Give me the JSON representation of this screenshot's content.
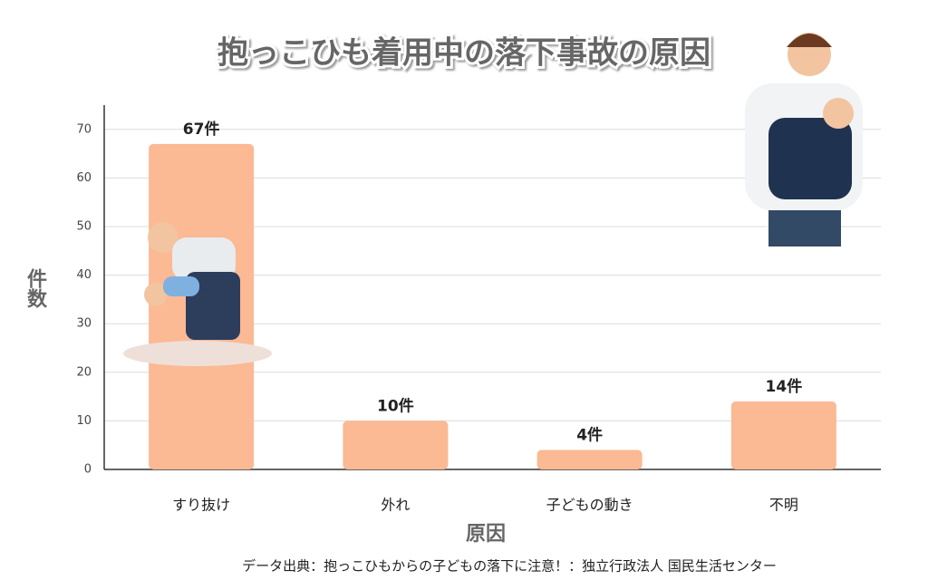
{
  "chart_data": {
    "type": "bar",
    "title": "抱っこひも着用中の落下事故の原因",
    "categories": [
      "すり抜け",
      "外れ",
      "子どもの動き",
      "不明"
    ],
    "values": [
      67,
      10,
      4,
      14
    ],
    "value_labels": [
      "67件",
      "10件",
      "4件",
      "14件"
    ],
    "color": "#fbb994",
    "ylim": [
      0,
      75
    ],
    "yticks": [
      0,
      10,
      20,
      30,
      40,
      50,
      60,
      70
    ],
    "grid": true,
    "x_label": "原因",
    "y_label": "件数",
    "source": "データ出典：抱っこひもからの子どもの落下に注意！：独立行政法人 国民生活センター"
  }
}
